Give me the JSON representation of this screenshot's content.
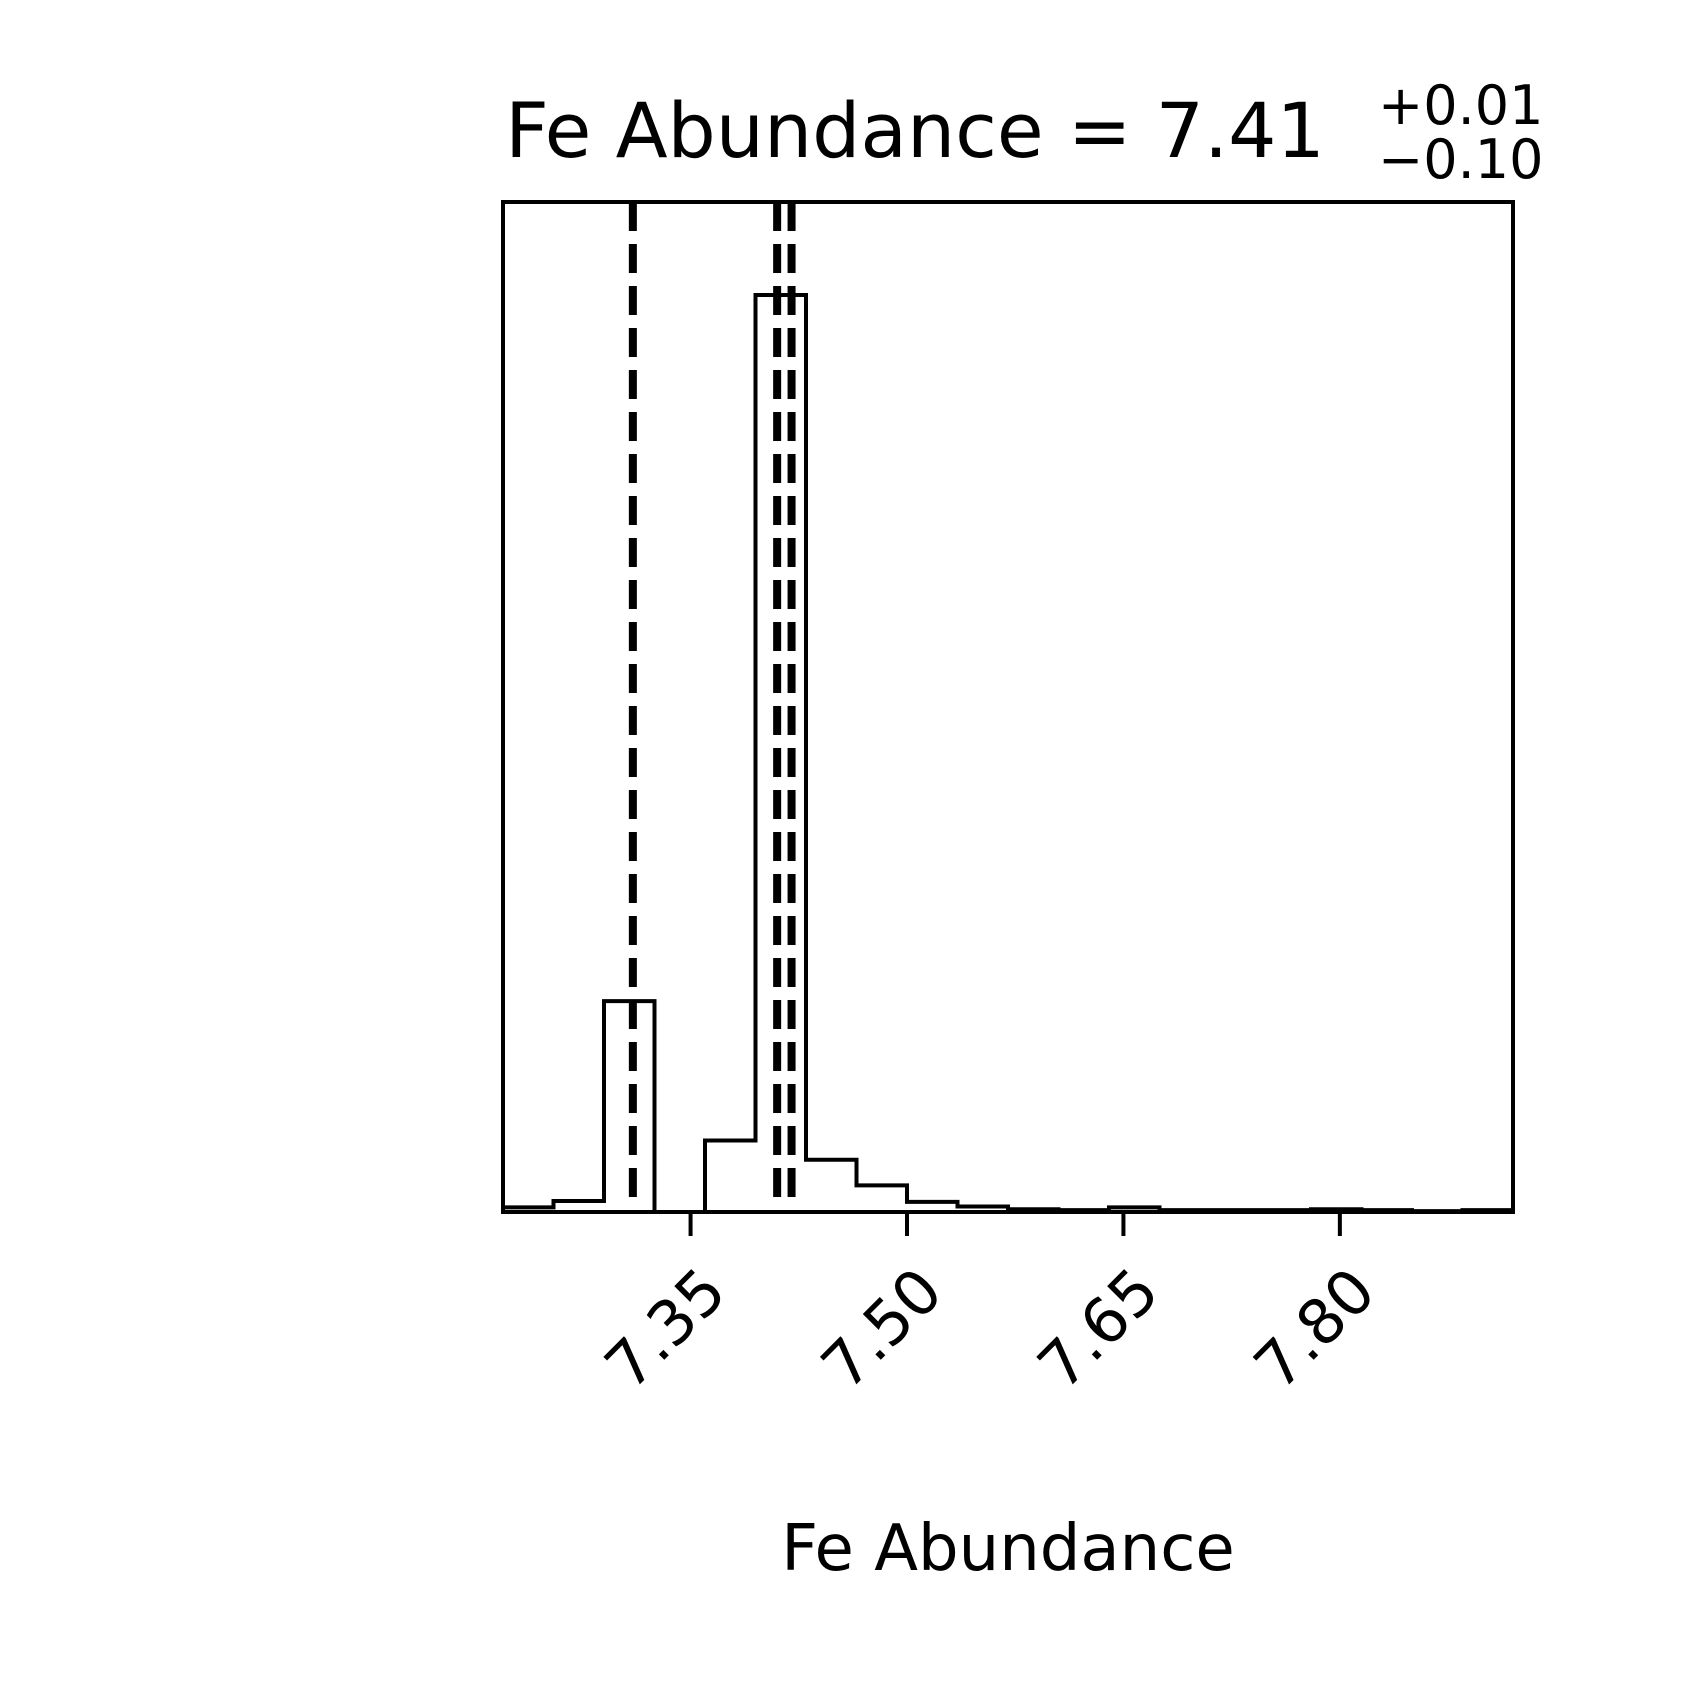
{
  "chart_data": {
    "type": "histogram",
    "title": {
      "main": "Fe Abundance = 7.41",
      "sup": "+0.01",
      "sub": "−0.10"
    },
    "xlabel": "Fe Abundance",
    "ylabel": "",
    "xlim": [
      7.22,
      7.92
    ],
    "ylim": [
      0,
      1.0
    ],
    "grid": false,
    "xticks": [
      {
        "value": 7.35,
        "label": "7.35"
      },
      {
        "value": 7.5,
        "label": "7.50"
      },
      {
        "value": 7.65,
        "label": "7.65"
      },
      {
        "value": 7.8,
        "label": "7.80"
      }
    ],
    "bins": {
      "edges": [
        7.22,
        7.255,
        7.29,
        7.325,
        7.36,
        7.395,
        7.43,
        7.465,
        7.5,
        7.535,
        7.57,
        7.605,
        7.64,
        7.675,
        7.71,
        7.745,
        7.78,
        7.815,
        7.85,
        7.885,
        7.92
      ],
      "counts": [
        0.005,
        0.012,
        0.23,
        0.0,
        0.078,
        1.0,
        0.057,
        0.029,
        0.011,
        0.006,
        0.003,
        0.002,
        0.005,
        0.002,
        0.002,
        0.002,
        0.003,
        0.002,
        0.001,
        0.002
      ]
    },
    "vlines": [
      {
        "x": 7.31,
        "role": "16th percentile",
        "style": "dashed"
      },
      {
        "x": 7.41,
        "role": "median",
        "style": "dashed"
      },
      {
        "x": 7.42,
        "role": "84th percentile",
        "style": "dashed"
      }
    ],
    "color": "#000000"
  }
}
